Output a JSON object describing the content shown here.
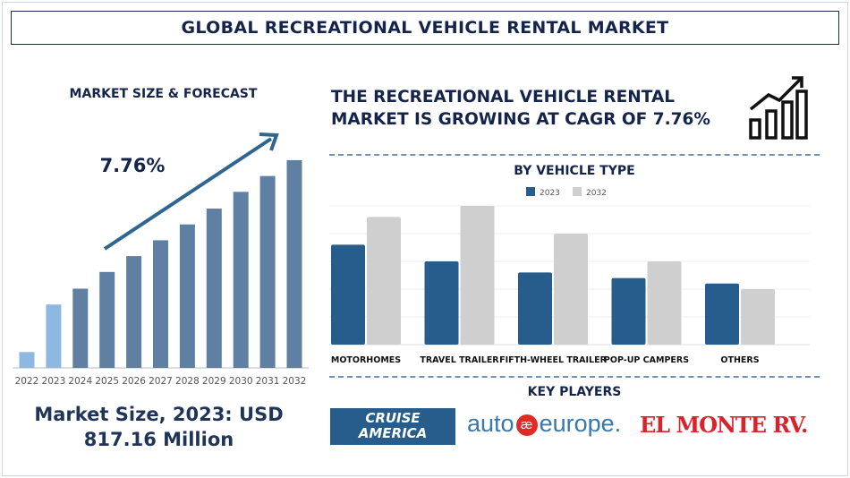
{
  "title": "GLOBAL RECREATIONAL VEHICLE RENTAL MARKET",
  "left": {
    "heading": "MARKET SIZE & FORECAST",
    "market_size_line1": "Market Size, 2023: USD",
    "market_size_line2": "817.16 Million"
  },
  "headline": {
    "line1": "THE RECREATIONAL VEHICLE RENTAL",
    "line2": "MARKET IS GROWING AT CAGR OF 7.76%",
    "icon": "growth-chart-icon"
  },
  "key_players": {
    "heading": "KEY PLAYERS",
    "logos": [
      "CRUISE AMERICA",
      "autoeurope",
      "EL MONTE RV"
    ]
  },
  "colors": {
    "navy": "#14244a",
    "forecast_bar": "#5f7fa3",
    "actual_bar": "#8db8e0",
    "s2023": "#265d8c",
    "s2032": "#cfcfcf"
  },
  "chart_data": [
    {
      "type": "bar",
      "title": "",
      "annotation": "7.76%",
      "categories": [
        "2022",
        "2023",
        "2024",
        "2025",
        "2026",
        "2027",
        "2028",
        "2029",
        "2030",
        "2031",
        "2032"
      ],
      "values": [
        18,
        72,
        90,
        109,
        127,
        145,
        163,
        181,
        200,
        218,
        236
      ],
      "highlighted": [
        "2022",
        "2023"
      ],
      "ylim": [
        0,
        240
      ],
      "grid": false,
      "trend_arrow": true
    },
    {
      "type": "bar",
      "title": "BY VEHICLE TYPE",
      "categories": [
        "MOTORHOMES",
        "TRAVEL TRAILER",
        "FIFTH-WHEEL TRAILER",
        "POP-UP CAMPERS",
        "OTHERS"
      ],
      "series": [
        {
          "name": "2023",
          "values": [
            3.6,
            3.0,
            2.6,
            2.4,
            2.2
          ]
        },
        {
          "name": "2032",
          "values": [
            4.6,
            5.0,
            4.0,
            3.0,
            2.0
          ]
        }
      ],
      "ylim": [
        0,
        5
      ],
      "grid": true,
      "legend": "top-center"
    }
  ]
}
